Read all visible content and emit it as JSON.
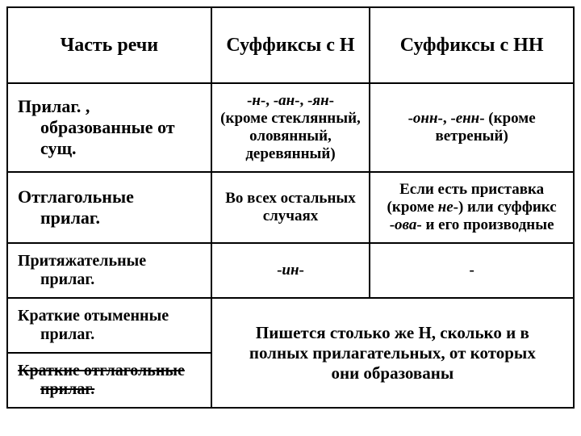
{
  "header": {
    "part": "Часть речи",
    "n": "Суффиксы с Н",
    "nn": "Суффиксы с НН"
  },
  "rows": {
    "adj_from_noun": {
      "part_line1": "Прилаг. ,",
      "part_line2": "образованные от сущ.",
      "n_pre": "-",
      "n_i1": "н",
      "n_mid1": "-, -",
      "n_i2": "ан",
      "n_mid2": "-, -",
      "n_i3": "ян",
      "n_post": "-",
      "n_rest": "(кроме стеклянный, оловянный, деревянный)",
      "nn_pre": "-",
      "nn_i1": "онн",
      "nn_mid": "-, -",
      "nn_i2": "енн",
      "nn_post": "- (кроме ветреный)"
    },
    "verbal_adj": {
      "part_line1": "Отглагольные",
      "part_line2": "прилаг.",
      "n": "Во всех остальных случаях",
      "nn_pre": "Если есть приставка (кроме ",
      "nn_i1": "не",
      "nn_mid": "-) или суффикс -",
      "nn_i2": "ова",
      "nn_post": "- и его производные"
    },
    "possessive": {
      "part_line1": "Притяжательные",
      "part_line2": "прилаг.",
      "n_pre": "-",
      "n_i": "ин",
      "n_post": "-",
      "nn": "-"
    },
    "short1": {
      "part_line1": "Краткие отыменные",
      "part_line2": "прилаг."
    },
    "short2": {
      "part_line1": "Краткие отглагольные",
      "part_line2": "прилаг."
    },
    "merged": "Пишется столько же Н, сколько и в полных прилагательных, от которых они образованы"
  }
}
